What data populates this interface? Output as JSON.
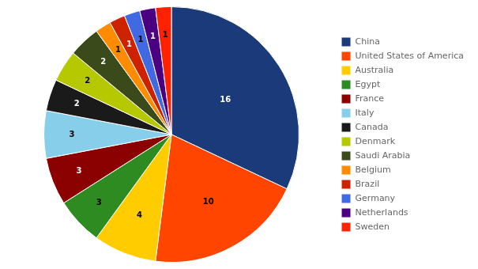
{
  "chart_data": {
    "type": "pie",
    "categories": [
      "China",
      "United States of America",
      "Australia",
      "Egypt",
      "France",
      "Italy",
      "Canada",
      "Denmark",
      "Saudi Arabia",
      "Belgium",
      "Brazil",
      "Germany",
      "Netherlands",
      "Sweden"
    ],
    "values": [
      16,
      10,
      4,
      3,
      3,
      3,
      2,
      2,
      2,
      1,
      1,
      1,
      1,
      1
    ],
    "colors": [
      "#1a3a7a",
      "#ff4500",
      "#ffcc00",
      "#2e8b22",
      "#8b0000",
      "#87ceeb",
      "#1a1a1a",
      "#b5c800",
      "#3b4a1a",
      "#ff8c00",
      "#cc2200",
      "#4169e1",
      "#4b0082",
      "#ff2200"
    ],
    "data_labels": true,
    "legend": "right"
  }
}
